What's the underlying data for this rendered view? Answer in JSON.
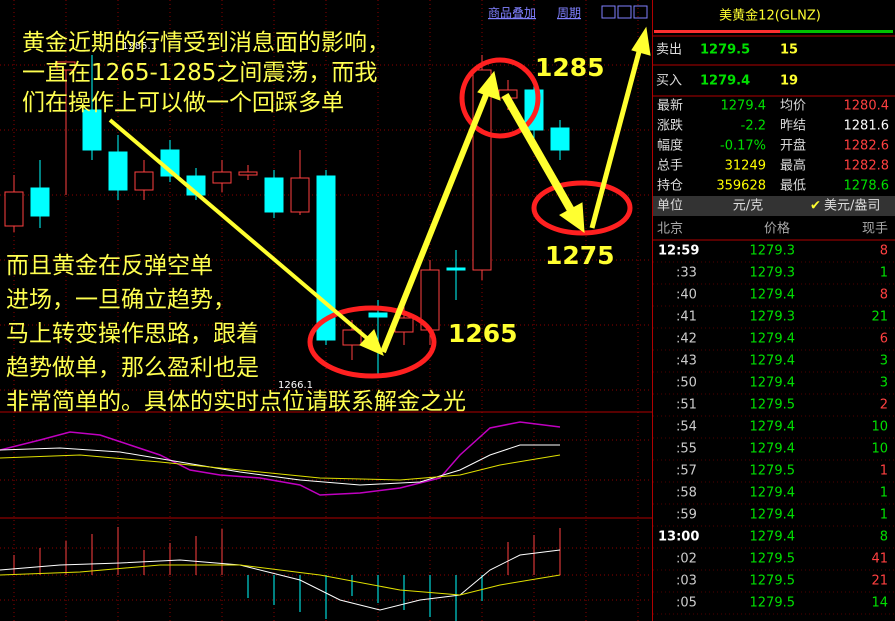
{
  "toolbar": {
    "overlay": "商品叠加",
    "period": "周期"
  },
  "chart_labels": {
    "high": "1285.1",
    "low": "1266.1"
  },
  "annotation": {
    "intro": [
      "黄金近期的行情受到消息面的影响，",
      "一直在1265-1285之间震荡，而我",
      "们在操作上可以做一个回踩多单"
    ],
    "body": [
      "而且黄金在反弹空单",
      "进场，一旦确立趋势，",
      "马上转变操作思路，跟着",
      "趋势做单，那么盈利也是",
      "非常简单的。具体的实时点位请联系解金之光"
    ],
    "levels": [
      "1285",
      "1275",
      "1265"
    ]
  },
  "quote": {
    "title": "美黄金12(GLNZ)",
    "sell": {
      "label": "卖出",
      "price": "1279.5",
      "volume": "15"
    },
    "buy": {
      "label": "买入",
      "price": "1279.4",
      "volume": "19"
    },
    "stats": [
      {
        "label": "最新",
        "value": "1279.4",
        "color": "#00e000"
      },
      {
        "label": "均价",
        "value": "1280.4",
        "color": "#ff4040"
      },
      {
        "label": "涨跌",
        "value": "-2.2",
        "color": "#00e000"
      },
      {
        "label": "昨结",
        "value": "1281.6",
        "color": "#ffffff"
      },
      {
        "label": "幅度",
        "value": "-0.17%",
        "color": "#00e000"
      },
      {
        "label": "开盘",
        "value": "1282.6",
        "color": "#ff4040"
      },
      {
        "label": "总手",
        "value": "31249",
        "color": "#ffff00"
      },
      {
        "label": "最高",
        "value": "1282.8",
        "color": "#ff4040"
      },
      {
        "label": "持仓",
        "value": "359628",
        "color": "#ffff00"
      },
      {
        "label": "最低",
        "value": "1278.6",
        "color": "#00e000"
      }
    ],
    "unit": {
      "label": "单位",
      "value": "元/克",
      "option": "美元/盎司"
    },
    "ticks_header": [
      "北京",
      "价格",
      "现手"
    ],
    "ticks": [
      {
        "time": "12:59",
        "price": "1279.3",
        "volume": "8",
        "color": "#ff4040"
      },
      {
        "time": ":33",
        "price": "1279.3",
        "volume": "1",
        "color": "#00e000"
      },
      {
        "time": ":40",
        "price": "1279.4",
        "volume": "8",
        "color": "#ff4040"
      },
      {
        "time": ":41",
        "price": "1279.3",
        "volume": "21",
        "color": "#00e000"
      },
      {
        "time": ":42",
        "price": "1279.4",
        "volume": "6",
        "color": "#ff4040"
      },
      {
        "time": ":43",
        "price": "1279.4",
        "volume": "3",
        "color": "#00e000"
      },
      {
        "time": ":50",
        "price": "1279.4",
        "volume": "3",
        "color": "#00e000"
      },
      {
        "time": ":51",
        "price": "1279.5",
        "volume": "2",
        "color": "#ff4040"
      },
      {
        "time": ":54",
        "price": "1279.4",
        "volume": "10",
        "color": "#00e000"
      },
      {
        "time": ":55",
        "price": "1279.4",
        "volume": "10",
        "color": "#00e000"
      },
      {
        "time": ":57",
        "price": "1279.5",
        "volume": "1",
        "color": "#ff4040"
      },
      {
        "time": ":58",
        "price": "1279.4",
        "volume": "1",
        "color": "#00e000"
      },
      {
        "time": ":59",
        "price": "1279.4",
        "volume": "1",
        "color": "#00e000"
      },
      {
        "time": "13:00",
        "price": "1279.4",
        "volume": "8",
        "color": "#00e000"
      },
      {
        "time": ":02",
        "price": "1279.5",
        "volume": "41",
        "color": "#ff4040"
      },
      {
        "time": ":03",
        "price": "1279.5",
        "volume": "21",
        "color": "#ff4040"
      },
      {
        "time": ":05",
        "price": "1279.5",
        "volume": "14",
        "color": "#00e000"
      }
    ]
  }
}
